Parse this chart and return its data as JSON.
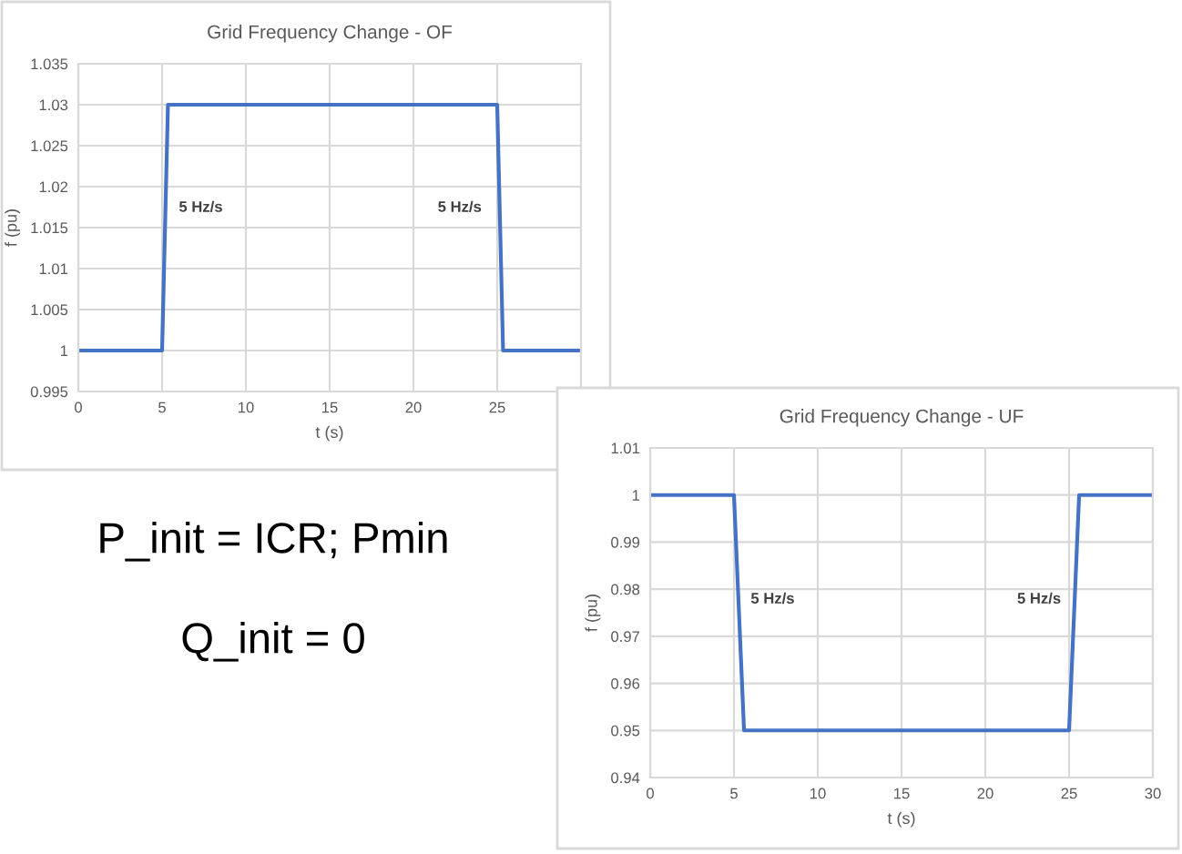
{
  "chart_data": [
    {
      "type": "line",
      "title": "Grid Frequency Change - OF",
      "xlabel": "t (s)",
      "ylabel": "f (pu)",
      "series": [
        {
          "color": "#4472c4",
          "x": [
            0,
            5,
            5.35,
            25,
            25.35,
            30
          ],
          "values": [
            1,
            1,
            1.03,
            1.03,
            1,
            1
          ]
        }
      ],
      "xlim": [
        0,
        30
      ],
      "xticks": [
        0,
        5,
        10,
        15,
        20,
        25
      ],
      "ylim": [
        0.995,
        1.035
      ],
      "yticks": [
        0.995,
        1,
        1.005,
        1.01,
        1.015,
        1.02,
        1.025,
        1.03,
        1.035
      ],
      "grid": true,
      "annotations": [
        "5 Hz/s",
        "5 Hz/s"
      ]
    },
    {
      "type": "line",
      "title": "Grid Frequency Change - UF",
      "xlabel": "t (s)",
      "ylabel": "f (pu)",
      "series": [
        {
          "color": "#4472c4",
          "x": [
            0,
            5,
            5.6,
            25,
            25.6,
            30
          ],
          "values": [
            1,
            1,
            0.95,
            0.95,
            1,
            1
          ]
        }
      ],
      "xlim": [
        0,
        30
      ],
      "xticks": [
        0,
        5,
        10,
        15,
        20,
        25,
        30
      ],
      "ylim": [
        0.94,
        1.01
      ],
      "yticks": [
        0.94,
        0.95,
        0.96,
        0.97,
        0.98,
        0.99,
        1,
        1.01
      ],
      "grid": true,
      "annotations": [
        "5 Hz/s",
        "5 Hz/s"
      ]
    },
    {
      "type": "other",
      "annotations": [
        "P_init = ICR; Pmin",
        "Q_init = 0"
      ]
    }
  ]
}
